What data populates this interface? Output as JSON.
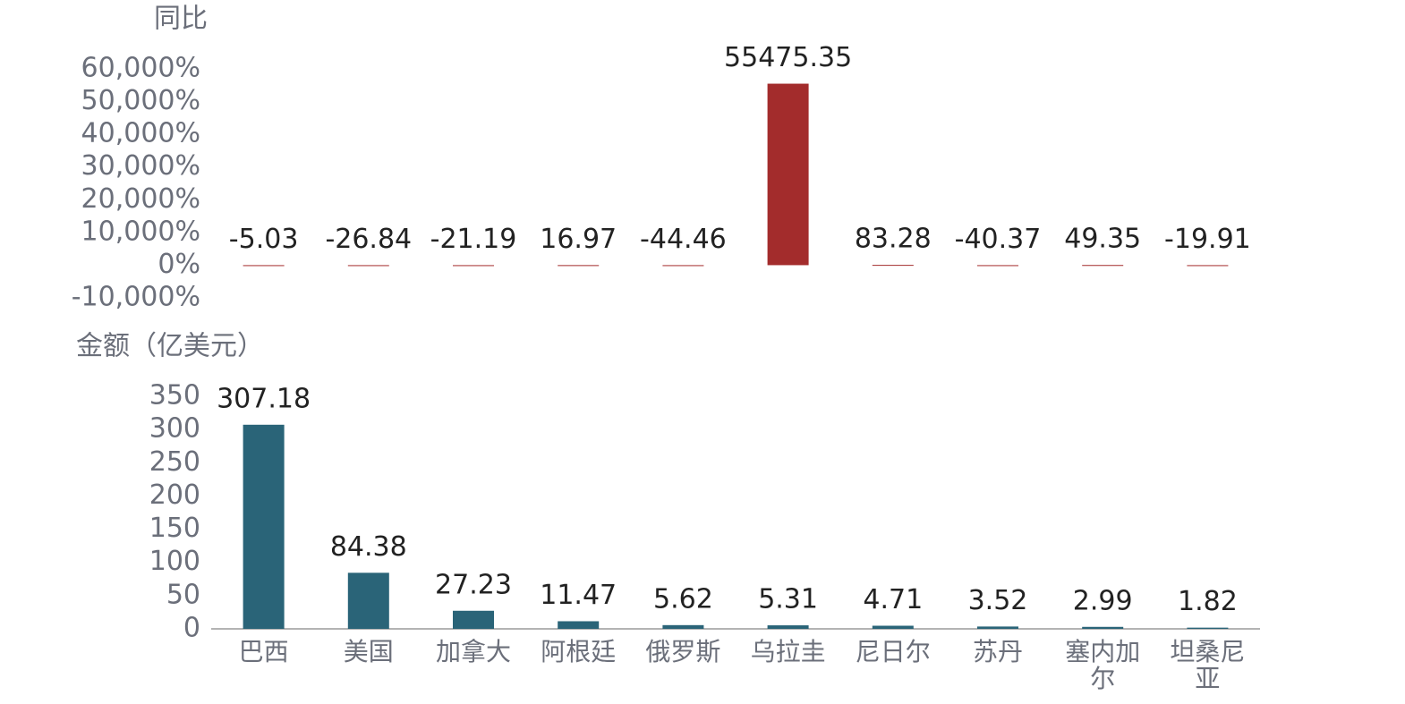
{
  "chart_data": [
    {
      "type": "bar",
      "ylabel": "同比",
      "values": [
        -5.03,
        -26.84,
        -21.19,
        16.97,
        -44.46,
        55475.35,
        83.28,
        -40.37,
        49.35,
        -19.91
      ],
      "color": "#a32c2c",
      "ylim": [
        -10000,
        60000
      ],
      "yticks": [
        {
          "value": -10000,
          "label": "-10,000%"
        },
        {
          "value": 0,
          "label": "0%"
        },
        {
          "value": 10000,
          "label": "10,000%"
        },
        {
          "value": 20000,
          "label": "20,000%"
        },
        {
          "value": 30000,
          "label": "30,000%"
        },
        {
          "value": 40000,
          "label": "40,000%"
        },
        {
          "value": 50000,
          "label": "50,000%"
        },
        {
          "value": 60000,
          "label": "60,000%"
        }
      ]
    },
    {
      "type": "bar",
      "ylabel": "金额（亿美元）",
      "categories": [
        "巴西",
        "美国",
        "加拿大",
        "阿根廷",
        "俄罗斯",
        "乌拉圭",
        "尼日尔",
        "苏丹",
        "塞内加尔",
        "坦桑尼亚"
      ],
      "values": [
        307.18,
        84.38,
        27.23,
        11.47,
        5.62,
        5.31,
        4.71,
        3.52,
        2.99,
        1.82
      ],
      "color": "#2a6478",
      "ylim": [
        0,
        350
      ],
      "yticks": [
        0,
        50,
        100,
        150,
        200,
        250,
        300,
        350
      ]
    }
  ]
}
